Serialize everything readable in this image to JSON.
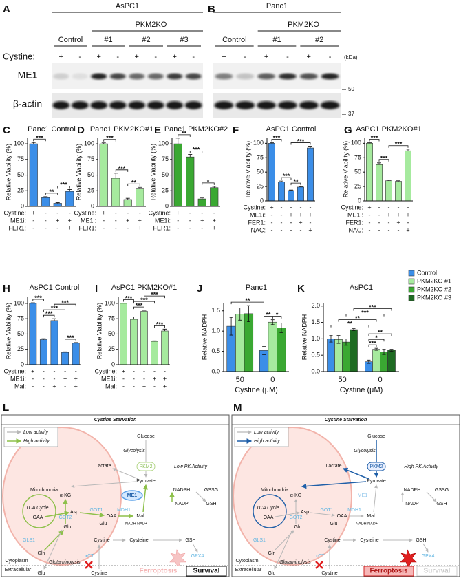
{
  "blots": [
    {
      "letter": "A",
      "title": "AsPC1",
      "group": "PKM2KO",
      "conditions": [
        "Control",
        "#1",
        "#2",
        "#3"
      ],
      "row_label": "Cystine:",
      "signs": [
        "+",
        "-",
        "+",
        "-",
        "+",
        "-",
        "+",
        "-"
      ],
      "bands": [
        "ME1",
        "β-actin"
      ]
    },
    {
      "letter": "B",
      "title": "Panc1",
      "group": "PKM2KO",
      "conditions": [
        "Control",
        "#1",
        "#2"
      ],
      "signs": [
        "+",
        "-",
        "+",
        "-",
        "+",
        "-"
      ]
    }
  ],
  "markers": {
    "unit": "(kDa)",
    "sizes": [
      50,
      37
    ]
  },
  "chart_data": [
    {
      "type": "bar",
      "panel": "C",
      "title": "Panc1  Control",
      "y_label": "Relative Viability (%)",
      "values": [
        100,
        14,
        5,
        24
      ],
      "errors": [
        2,
        1.5,
        1,
        3
      ],
      "color": "#3b8ee8",
      "ylim": [
        0,
        110
      ],
      "yticks": [
        0,
        25,
        50,
        75,
        100
      ],
      "conditions": [
        {
          "label": "Cystine:",
          "signs": [
            "+",
            "-",
            "-",
            "-"
          ]
        },
        {
          "label": "ME1i:",
          "signs": [
            "-",
            "-",
            "+",
            "+"
          ]
        },
        {
          "label": "FER1:",
          "signs": [
            "-",
            "-",
            "-",
            "+"
          ]
        }
      ],
      "significance": [
        {
          "bars": [
            0,
            1
          ],
          "label": "***"
        },
        {
          "bars": [
            1,
            2
          ],
          "label": "**"
        },
        {
          "bars": [
            2,
            3
          ],
          "label": "***"
        }
      ]
    },
    {
      "type": "bar",
      "panel": "D",
      "title": "Panc1  PKM2KO#1",
      "y_label": "Relative Viability (%)",
      "values": [
        100,
        45,
        11,
        29
      ],
      "errors": [
        1.5,
        8,
        2,
        1.5
      ],
      "color": "#a6ea9e",
      "ylim": [
        0,
        110
      ],
      "yticks": [
        0,
        25,
        50,
        75,
        100
      ],
      "conditions": [
        {
          "label": "Cystine:",
          "signs": [
            "+",
            "-",
            "-",
            "-"
          ]
        },
        {
          "label": "ME1i:",
          "signs": [
            "-",
            "-",
            "+",
            "+"
          ]
        },
        {
          "label": "FER1:",
          "signs": [
            "-",
            "-",
            "-",
            "+"
          ]
        }
      ],
      "significance": [
        {
          "bars": [
            0,
            1
          ],
          "label": "***"
        },
        {
          "bars": [
            1,
            2
          ],
          "label": "***"
        },
        {
          "bars": [
            2,
            3
          ],
          "label": "**"
        }
      ]
    },
    {
      "type": "bar",
      "panel": "E",
      "title": "Panc1  PKM2KO#2",
      "y_label": "Relative Viability (%)",
      "values": [
        100,
        79,
        12,
        30
      ],
      "errors": [
        9,
        4,
        1.5,
        2
      ],
      "color": "#3aa832",
      "ylim": [
        0,
        110
      ],
      "yticks": [
        0,
        25,
        50,
        75,
        100
      ],
      "conditions": [
        {
          "label": "Cystine:",
          "signs": [
            "+",
            "-",
            "-",
            "-"
          ]
        },
        {
          "label": "ME1i:",
          "signs": [
            "-",
            "-",
            "+",
            "+"
          ]
        },
        {
          "label": "FER1:",
          "signs": [
            "-",
            "-",
            "-",
            "+"
          ]
        }
      ],
      "significance": [
        {
          "bars": [
            0,
            1
          ],
          "label": "**"
        },
        {
          "bars": [
            1,
            2
          ],
          "label": "***"
        },
        {
          "bars": [
            2,
            3
          ],
          "label": "*"
        }
      ]
    },
    {
      "type": "bar",
      "panel": "F",
      "title": "AsPC1  Control",
      "y_label": "Relative Viability (%)",
      "values": [
        100,
        33,
        18,
        24,
        92
      ],
      "errors": [
        1,
        1.5,
        1,
        1,
        3
      ],
      "color": "#3b8ee8",
      "ylim": [
        0,
        110
      ],
      "yticks": [
        0,
        25,
        50,
        75,
        100
      ],
      "conditions": [
        {
          "label": "Cystine:",
          "signs": [
            "+",
            "-",
            "-",
            "-",
            "-"
          ]
        },
        {
          "label": "ME1i:",
          "signs": [
            "-",
            "-",
            "+",
            "+",
            "+"
          ]
        },
        {
          "label": "FER1:",
          "signs": [
            "-",
            "-",
            "-",
            "+",
            "-"
          ]
        },
        {
          "label": "NAC:",
          "signs": [
            "-",
            "-",
            "-",
            "-",
            "+"
          ]
        }
      ],
      "significance": [
        {
          "bars": [
            0,
            1
          ],
          "label": "***"
        },
        {
          "bars": [
            1,
            2
          ],
          "label": "***"
        },
        {
          "bars": [
            2,
            3
          ],
          "label": "**"
        },
        {
          "bars": [
            2,
            4
          ],
          "label": "***"
        }
      ]
    },
    {
      "type": "bar",
      "panel": "G",
      "title": "AsPC1  PKM2KO#1",
      "y_label": "Relative Viability (%)",
      "values": [
        100,
        63,
        35,
        34,
        87
      ],
      "errors": [
        1,
        3,
        1,
        1,
        3
      ],
      "color": "#a6ea9e",
      "ylim": [
        0,
        110
      ],
      "yticks": [
        0,
        25,
        50,
        75,
        100
      ],
      "conditions": [
        {
          "label": "Cystine:",
          "signs": [
            "+",
            "-",
            "-",
            "-",
            "-"
          ]
        },
        {
          "label": "ME1i:",
          "signs": [
            "-",
            "-",
            "+",
            "+",
            "+"
          ]
        },
        {
          "label": "FER1:",
          "signs": [
            "-",
            "-",
            "-",
            "+",
            "-"
          ]
        },
        {
          "label": "NAC:",
          "signs": [
            "-",
            "-",
            "-",
            "-",
            "+"
          ]
        }
      ],
      "significance": [
        {
          "bars": [
            0,
            1
          ],
          "label": "***"
        },
        {
          "bars": [
            1,
            2
          ],
          "label": "***"
        },
        {
          "bars": [
            2,
            4
          ],
          "label": "***"
        }
      ]
    },
    {
      "type": "bar",
      "panel": "H",
      "title": "AsPC1  Control",
      "y_label": "Relative Viability (%)",
      "values": [
        100,
        41,
        72,
        20,
        35
      ],
      "errors": [
        1,
        1.5,
        3,
        1,
        1
      ],
      "color": "#3b8ee8",
      "ylim": [
        0,
        110
      ],
      "yticks": [
        0,
        25,
        50,
        75,
        100
      ],
      "conditions": [
        {
          "label": "Cystine:",
          "signs": [
            "+",
            "-",
            "-",
            "-",
            "-"
          ]
        },
        {
          "label": "ME1i:",
          "signs": [
            "-",
            "-",
            "-",
            "+",
            "+"
          ]
        },
        {
          "label": "Mal:",
          "signs": [
            "-",
            "-",
            "+",
            "-",
            "+"
          ]
        }
      ],
      "significance": [
        {
          "bars": [
            0,
            1
          ],
          "label": "***"
        },
        {
          "bars": [
            1,
            2
          ],
          "label": "***"
        },
        {
          "bars": [
            3,
            4
          ],
          "label": "***"
        },
        {
          "bars": [
            1,
            3
          ],
          "label": "***"
        },
        {
          "bars": [
            2,
            4
          ],
          "label": "***"
        }
      ]
    },
    {
      "type": "bar",
      "panel": "I",
      "title": "AsPC1  PKM2KO#1",
      "y_label": "Relative Viability (%)",
      "values": [
        100,
        74,
        87,
        38,
        55
      ],
      "errors": [
        0.5,
        4,
        1.5,
        1,
        3
      ],
      "color": "#a6ea9e",
      "ylim": [
        0,
        110
      ],
      "yticks": [
        0,
        25,
        50,
        75,
        100
      ],
      "conditions": [
        {
          "label": "Cystine:",
          "signs": [
            "+",
            "-",
            "-",
            "-",
            "-"
          ]
        },
        {
          "label": "ME1i:",
          "signs": [
            "-",
            "-",
            "-",
            "+",
            "+"
          ]
        },
        {
          "label": "Mal:",
          "signs": [
            "-",
            "-",
            "+",
            "-",
            "+"
          ]
        }
      ],
      "significance": [
        {
          "bars": [
            0,
            1
          ],
          "label": "***"
        },
        {
          "bars": [
            1,
            2
          ],
          "label": "***"
        },
        {
          "bars": [
            3,
            4
          ],
          "label": "***"
        },
        {
          "bars": [
            1,
            3
          ],
          "label": "***"
        },
        {
          "bars": [
            2,
            4
          ],
          "label": "***"
        }
      ]
    },
    {
      "type": "grouped_bar",
      "panel": "J",
      "title": "Panc1",
      "y_label": "Relative NADPH",
      "x_label": "Cystine  (µM)",
      "categories": [
        "50",
        "0"
      ],
      "series": [
        {
          "color": "#3b8ee8",
          "values": [
            1.12,
            0.52
          ],
          "errors": [
            0.22,
            0.1
          ]
        },
        {
          "color": "#a6ea9e",
          "values": [
            1.42,
            1.22
          ],
          "errors": [
            0.15,
            0.06
          ]
        },
        {
          "color": "#3aa832",
          "values": [
            1.43,
            1.08
          ],
          "errors": [
            0.2,
            0.12
          ]
        }
      ],
      "ylim": [
        0,
        1.7
      ],
      "yticks": [
        {
          "value": 0,
          "label": "0.0"
        },
        0.5,
        {
          "value": 1,
          "label": "1.0"
        },
        1.5
      ],
      "significance": [
        {
          "bars": [
            3,
            4
          ],
          "label": "**"
        },
        {
          "bars": [
            4,
            5
          ],
          "label": "*"
        },
        {
          "bars": [
            0,
            3
          ],
          "label": "**"
        }
      ]
    },
    {
      "type": "grouped_bar",
      "panel": "K",
      "title": "AsPC1",
      "y_label": "Relative NADPH",
      "x_label": "Cystine  (µM)",
      "categories": [
        "50",
        "0"
      ],
      "legend": "right",
      "series": [
        {
          "name": "Control",
          "color": "#3b8ee8",
          "values": [
            1.0,
            0.3
          ],
          "errors": [
            0.1,
            0.05
          ]
        },
        {
          "name": "PKM2KO #1",
          "color": "#a6ea9e",
          "values": [
            0.98,
            0.68
          ],
          "errors": [
            0.12,
            0.03
          ]
        },
        {
          "name": "PKM2KO #2",
          "color": "#3aa832",
          "values": [
            0.9,
            0.6
          ],
          "errors": [
            0.1,
            0.08
          ]
        },
        {
          "name": "PKM2KO #3",
          "color": "#1e6b22",
          "values": [
            1.28,
            0.65
          ],
          "errors": [
            0.03,
            0.03
          ]
        }
      ],
      "ylim": [
        0,
        2.1
      ],
      "yticks": [
        {
          "value": 0,
          "label": "0.0"
        },
        0.5,
        {
          "value": 1,
          "label": "1.0"
        },
        1.5,
        {
          "value": 2,
          "label": "2.0"
        }
      ],
      "significance": [
        {
          "bars": [
            4,
            5
          ],
          "label": "***"
        },
        {
          "bars": [
            4,
            6
          ],
          "label": "*"
        },
        {
          "bars": [
            4,
            7
          ],
          "label": "**"
        },
        {
          "bars": [
            0,
            4
          ],
          "label": "**"
        },
        {
          "bars": [
            1,
            5
          ],
          "label": "**"
        },
        {
          "bars": [
            2,
            6
          ],
          "label": "***"
        },
        {
          "bars": [
            3,
            7
          ],
          "label": "***"
        }
      ]
    }
  ],
  "diagrams": [
    {
      "panel": "L",
      "header": "Cystine Starvation",
      "legend": [
        "Low activity",
        "High activity"
      ],
      "labels": [
        "Glucose",
        "Glycolysis",
        "Lactate",
        "PKM2",
        "Low PK Activity",
        "Pyruvate",
        "Mitochondria",
        "NADPH",
        "GSSG",
        "ME1",
        "NADP",
        "GSH",
        "TCA Cycle",
        "α-KG",
        "Asp",
        "GOT1",
        "MDH1",
        "OAA",
        "Mal",
        "OAA",
        "GOT2",
        "Glu",
        "Glu",
        "NADH  NAD+",
        "GLS1",
        "Cystine",
        "Cysteine",
        "GSH",
        "Gln",
        "Glutaminolysis",
        "xCT",
        "GPX4",
        "Cytoplasm",
        "Extracellular",
        "Glu",
        "Cystine"
      ],
      "outcomes": [
        "Ferroptosis",
        "Survival"
      ]
    },
    {
      "panel": "M",
      "header": "Cystine Starvation",
      "legend": [
        "Low activity",
        "High activity"
      ],
      "labels": [
        "Glucose",
        "Glycolysis",
        "Lactate",
        "PKM2",
        "High PK Activity",
        "Pyruvate",
        "Mitochondria",
        "NADPH",
        "GSSG",
        "ME1",
        "NADP",
        "GSH",
        "TCA Cycle",
        "α-KG",
        "Asp",
        "GOT1",
        "MDH1",
        "OAA",
        "Mal",
        "OAA",
        "GOT2",
        "Glu",
        "Glu",
        "NADH  NAD+",
        "GLS1",
        "Cystine",
        "Cysteine",
        "GSH",
        "Gln",
        "Glutaminolysis",
        "xCT",
        "GPX4",
        "Cytoplasm",
        "Extracellular",
        "Glu",
        "Cystine"
      ],
      "outcomes": [
        "Ferroptosis",
        "Survival"
      ]
    }
  ]
}
